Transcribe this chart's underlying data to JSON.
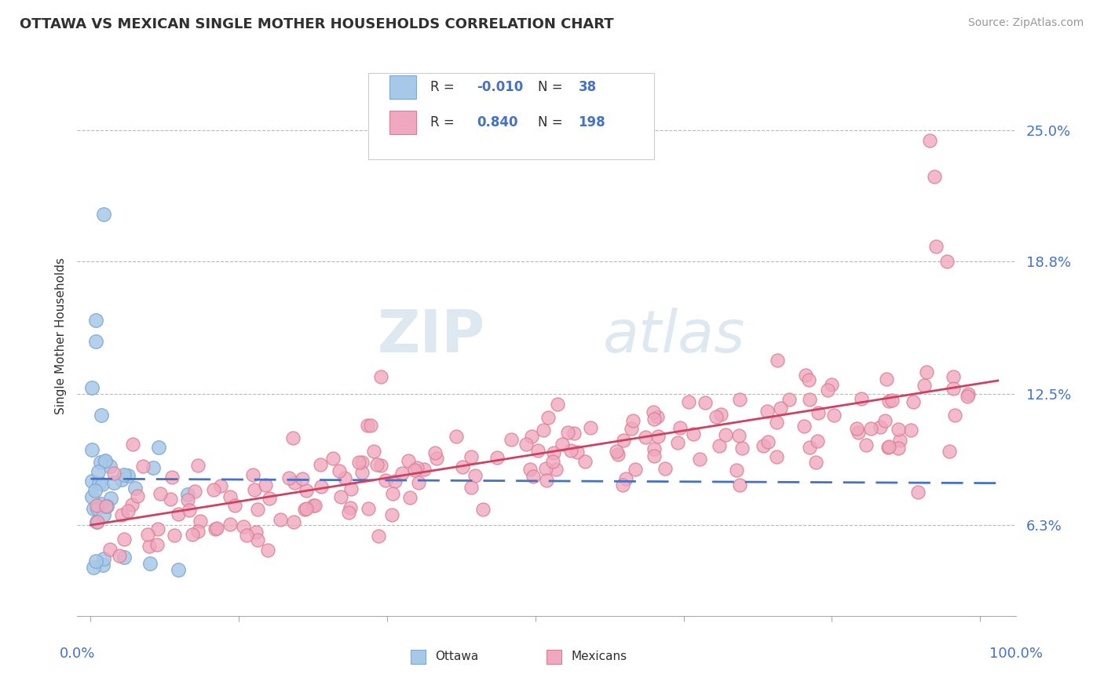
{
  "title": "OTTAWA VS MEXICAN SINGLE MOTHER HOUSEHOLDS CORRELATION CHART",
  "source": "Source: ZipAtlas.com",
  "ylabel": "Single Mother Households",
  "legend_entries": [
    {
      "label": "Ottawa",
      "color": "#a8c8e8",
      "edge": "#80a8d0",
      "R": "-0.010",
      "N": "38"
    },
    {
      "label": "Mexicans",
      "color": "#f0a8c0",
      "edge": "#d88090",
      "R": "0.840",
      "N": "198"
    }
  ],
  "yticks": [
    0.063,
    0.125,
    0.188,
    0.25
  ],
  "ytick_labels": [
    "6.3%",
    "12.5%",
    "18.8%",
    "25.0%"
  ],
  "watermark_top": "ZIP",
  "watermark_bot": "atlas",
  "trend_blue": "#4472c4",
  "trend_pink": "#d04060",
  "title_color": "#303030",
  "axis_label_color": "#4472c4",
  "legend_R_color": "#4472c4",
  "legend_N_color": "#4472c4",
  "background_color": "#ffffff",
  "grid_color": "#b8b8b8",
  "figsize": [
    14.06,
    8.92
  ],
  "dpi": 100,
  "xlim": [
    -0.015,
    1.04
  ],
  "ylim": [
    0.02,
    0.285
  ]
}
